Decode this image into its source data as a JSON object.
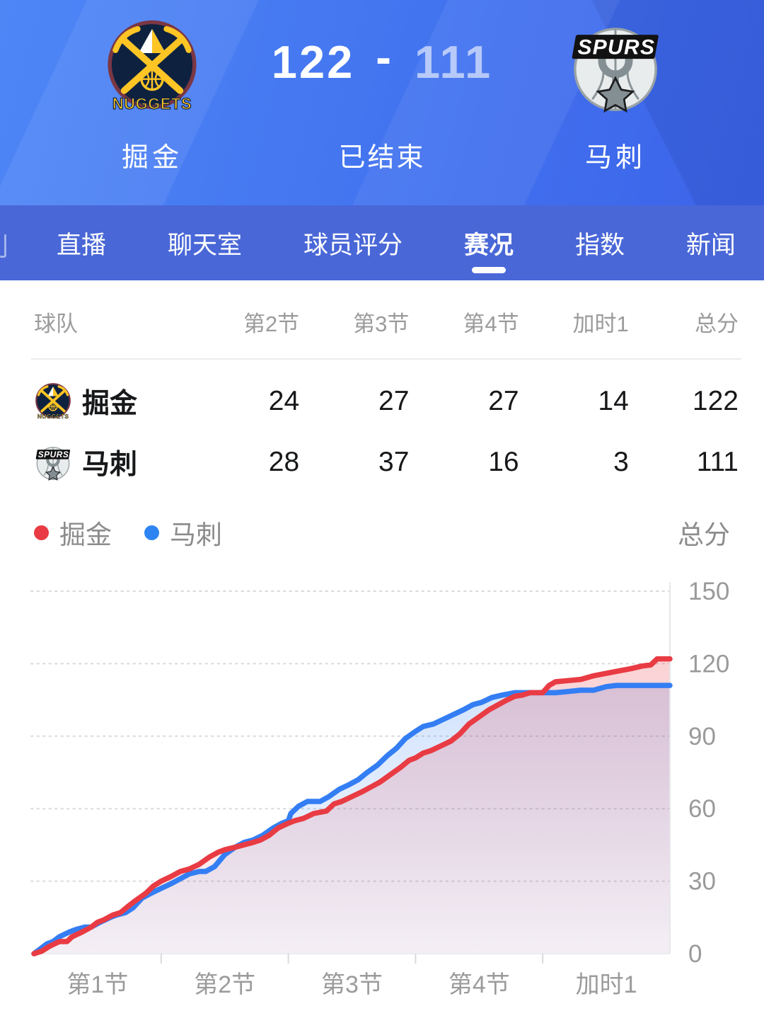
{
  "header": {
    "home": {
      "name": "掘金",
      "wordmark": "NUGGETS"
    },
    "away": {
      "name": "马刺",
      "wordmark": "SPURS"
    },
    "home_score": "122",
    "separator": "-",
    "away_score": "111",
    "status": "已结束"
  },
  "tabs": {
    "edge_fragment": "刂",
    "items": [
      {
        "label": "直播",
        "active": false
      },
      {
        "label": "聊天室",
        "active": false
      },
      {
        "label": "球员评分",
        "active": false
      },
      {
        "label": "赛况",
        "active": true
      },
      {
        "label": "指数",
        "active": false
      },
      {
        "label": "新闻",
        "active": false
      }
    ]
  },
  "score_table": {
    "columns": [
      "球队",
      "第2节",
      "第3节",
      "第4节",
      "加时1",
      "总分"
    ],
    "rows": [
      {
        "team": "掘金",
        "logo": "nuggets",
        "values": [
          "24",
          "27",
          "27",
          "14",
          "122"
        ]
      },
      {
        "team": "马刺",
        "logo": "spurs",
        "values": [
          "28",
          "37",
          "16",
          "3",
          "111"
        ]
      }
    ]
  },
  "chart_data": {
    "type": "line",
    "title": "",
    "ylabel": "总分",
    "yticks": [
      0,
      30,
      60,
      90,
      120,
      150
    ],
    "ylim": [
      0,
      150
    ],
    "x_categories": [
      "第1节",
      "第2节",
      "第3节",
      "第4节",
      "加时1"
    ],
    "grid": "dotted-horizontal",
    "legend_position": "top-left",
    "legend": [
      {
        "label": "掘金",
        "color": "#e93b43"
      },
      {
        "label": "马刺",
        "color": "#2e85f2"
      }
    ],
    "quarter_end_totals": {
      "掘金": [
        30,
        54,
        81,
        108,
        122
      ],
      "马刺": [
        27,
        55,
        92,
        108,
        111
      ]
    },
    "series": [
      {
        "name": "掘金",
        "color": "#e93b43",
        "points": [
          [
            0,
            0
          ],
          [
            0.06,
            1
          ],
          [
            0.12,
            3
          ],
          [
            0.2,
            5
          ],
          [
            0.26,
            5
          ],
          [
            0.3,
            7
          ],
          [
            0.38,
            9
          ],
          [
            0.45,
            11
          ],
          [
            0.5,
            13
          ],
          [
            0.55,
            14
          ],
          [
            0.62,
            16
          ],
          [
            0.68,
            17
          ],
          [
            0.75,
            20
          ],
          [
            0.8,
            22
          ],
          [
            0.88,
            25
          ],
          [
            0.94,
            28
          ],
          [
            1,
            30
          ],
          [
            1.08,
            32
          ],
          [
            1.15,
            34
          ],
          [
            1.22,
            35
          ],
          [
            1.3,
            37
          ],
          [
            1.38,
            40
          ],
          [
            1.45,
            42
          ],
          [
            1.5,
            43
          ],
          [
            1.58,
            44
          ],
          [
            1.65,
            45
          ],
          [
            1.72,
            46
          ],
          [
            1.78,
            47
          ],
          [
            1.85,
            49
          ],
          [
            1.92,
            52
          ],
          [
            2,
            54
          ],
          [
            2.05,
            55
          ],
          [
            2.12,
            56
          ],
          [
            2.2,
            58
          ],
          [
            2.3,
            59
          ],
          [
            2.36,
            62
          ],
          [
            2.42,
            63
          ],
          [
            2.5,
            65
          ],
          [
            2.58,
            67
          ],
          [
            2.65,
            69
          ],
          [
            2.72,
            71
          ],
          [
            2.8,
            74
          ],
          [
            2.88,
            77
          ],
          [
            2.95,
            80
          ],
          [
            3,
            81
          ],
          [
            3.06,
            83
          ],
          [
            3.12,
            84
          ],
          [
            3.2,
            86
          ],
          [
            3.28,
            88
          ],
          [
            3.35,
            91
          ],
          [
            3.42,
            95
          ],
          [
            3.5,
            98
          ],
          [
            3.58,
            101
          ],
          [
            3.65,
            103
          ],
          [
            3.72,
            105
          ],
          [
            3.78,
            106.5
          ],
          [
            3.84,
            107
          ],
          [
            3.9,
            108
          ],
          [
            4,
            108
          ],
          [
            4.05,
            111
          ],
          [
            4.1,
            112.5
          ],
          [
            4.2,
            113
          ],
          [
            4.3,
            113.5
          ],
          [
            4.4,
            115
          ],
          [
            4.5,
            116
          ],
          [
            4.6,
            117
          ],
          [
            4.7,
            118
          ],
          [
            4.78,
            119
          ],
          [
            4.85,
            119.5
          ],
          [
            4.9,
            122
          ],
          [
            5,
            122
          ]
        ]
      },
      {
        "name": "马刺",
        "color": "#347ef4",
        "points": [
          [
            0,
            0
          ],
          [
            0.05,
            2
          ],
          [
            0.1,
            4
          ],
          [
            0.15,
            5
          ],
          [
            0.2,
            7
          ],
          [
            0.28,
            9
          ],
          [
            0.33,
            10
          ],
          [
            0.4,
            11
          ],
          [
            0.45,
            11
          ],
          [
            0.52,
            13
          ],
          [
            0.6,
            15
          ],
          [
            0.65,
            16
          ],
          [
            0.72,
            17
          ],
          [
            0.78,
            19
          ],
          [
            0.85,
            23
          ],
          [
            0.92,
            25
          ],
          [
            1,
            27
          ],
          [
            1.08,
            29
          ],
          [
            1.15,
            31
          ],
          [
            1.22,
            33
          ],
          [
            1.3,
            34
          ],
          [
            1.35,
            34
          ],
          [
            1.42,
            36
          ],
          [
            1.5,
            41
          ],
          [
            1.58,
            44
          ],
          [
            1.65,
            46
          ],
          [
            1.72,
            47
          ],
          [
            1.8,
            49
          ],
          [
            1.88,
            52
          ],
          [
            1.95,
            54
          ],
          [
            2,
            55
          ],
          [
            2.02,
            58
          ],
          [
            2.08,
            61
          ],
          [
            2.15,
            63
          ],
          [
            2.25,
            63
          ],
          [
            2.32,
            65
          ],
          [
            2.4,
            68
          ],
          [
            2.48,
            70
          ],
          [
            2.55,
            72
          ],
          [
            2.62,
            75
          ],
          [
            2.7,
            78
          ],
          [
            2.78,
            82
          ],
          [
            2.85,
            85
          ],
          [
            2.92,
            89
          ],
          [
            3,
            92
          ],
          [
            3.06,
            94
          ],
          [
            3.14,
            95
          ],
          [
            3.22,
            97
          ],
          [
            3.3,
            99
          ],
          [
            3.38,
            101
          ],
          [
            3.45,
            103
          ],
          [
            3.52,
            104
          ],
          [
            3.6,
            106
          ],
          [
            3.68,
            107
          ],
          [
            3.78,
            108
          ],
          [
            3.88,
            108
          ],
          [
            4,
            108
          ],
          [
            4.1,
            108
          ],
          [
            4.2,
            108.5
          ],
          [
            4.3,
            109
          ],
          [
            4.4,
            109
          ],
          [
            4.5,
            110.5
          ],
          [
            4.58,
            111
          ],
          [
            4.7,
            111
          ],
          [
            4.85,
            111
          ],
          [
            5,
            111
          ]
        ]
      }
    ]
  }
}
